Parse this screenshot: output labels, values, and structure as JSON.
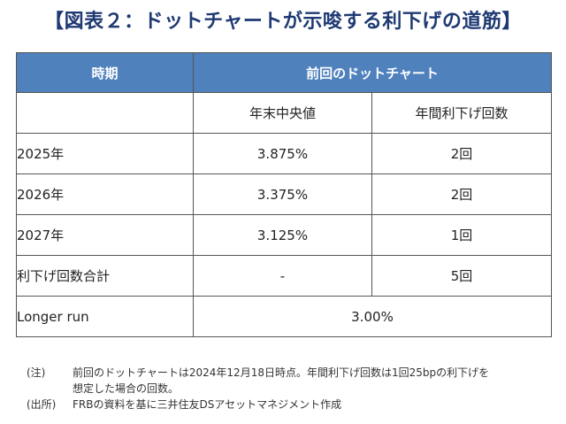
{
  "title": "【図表２：ドットチャートが示唆する利下げの道筋】",
  "table": {
    "header_period": "時期",
    "header_group": "前回のドットチャート",
    "subheaders": [
      "年末中央値",
      "年間利下げ回数"
    ],
    "rows": [
      {
        "label": "2025年",
        "median": "3.875%",
        "cuts": "2回"
      },
      {
        "label": "2026年",
        "median": "3.375%",
        "cuts": "2回"
      },
      {
        "label": "2027年",
        "median": "3.125%",
        "cuts": "1回"
      },
      {
        "label": "利下げ回数合計",
        "median": "-",
        "cuts": "5回"
      }
    ],
    "longer_run": {
      "label": "Longer run",
      "value": "3.00%"
    }
  },
  "notes": {
    "note_key": "(注)",
    "note_line1": "前回のドットチャートは2024年12月18日時点。年間利下げ回数は1回25bpの利下げを",
    "note_line2": "想定した場合の回数。",
    "source_key": "(出所)",
    "source_text": "FRBの資料を基に三井住友DSアセットマネジメント作成"
  }
}
